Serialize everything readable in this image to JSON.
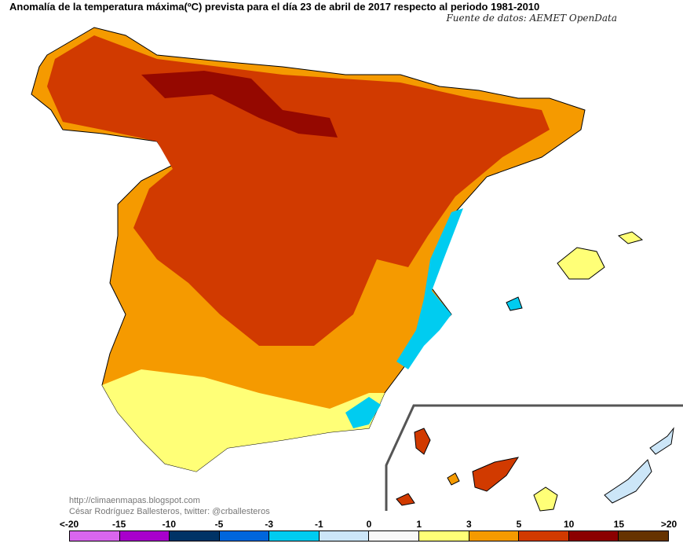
{
  "title": "Anomalía de la temperatura máxima(ºC) prevista para el día 23 de abril de 2017 respecto al periodo 1981-2010",
  "source": "Fuente de datos: AEMET OpenData",
  "credits": {
    "url": "http://climaenmapas.blogspot.com",
    "author": "César Rodríguez Ballesteros, twitter: @crballesteros"
  },
  "legend": {
    "ticks": [
      "<-20",
      "-15",
      "-10",
      "-5",
      "-3",
      "-1",
      "0",
      "1",
      "3",
      "5",
      "10",
      "15",
      ">20"
    ],
    "colors": [
      "#d966ee",
      "#a800cc",
      "#003366",
      "#0066dd",
      "#00ccf0",
      "#cce6f8",
      "#f8f8f8",
      "#ffff77",
      "#f59a00",
      "#d13a00",
      "#8b0000",
      "#663300"
    ]
  }
}
